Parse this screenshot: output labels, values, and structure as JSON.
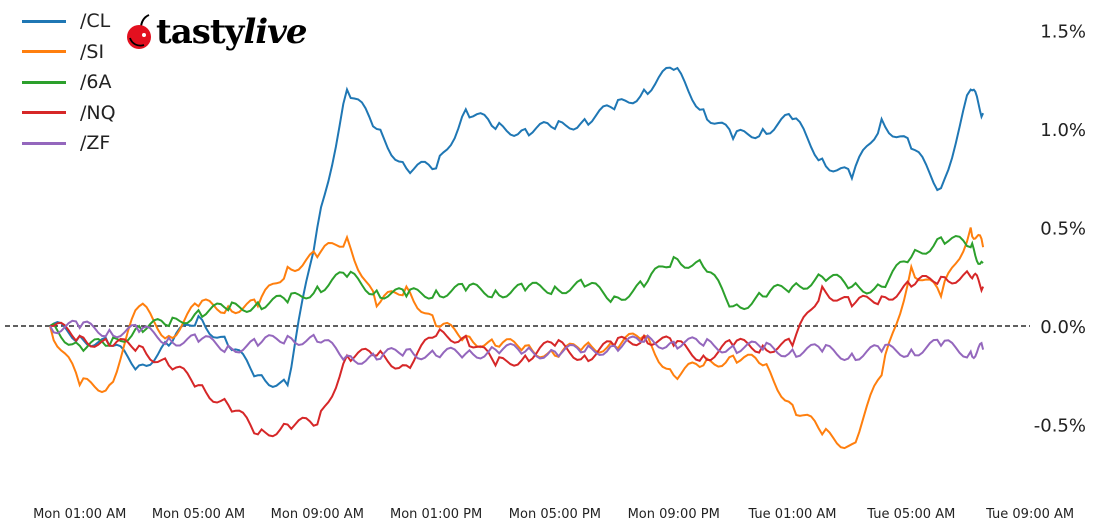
{
  "brand": {
    "logo_text": "tastylive",
    "logo_part1": "tasty",
    "logo_part2": "live",
    "cherry_color": "#e3101f"
  },
  "chart_data": {
    "type": "line",
    "title": "",
    "xlabel": "",
    "ylabel": "",
    "ylim": [
      -0.9,
      1.6
    ],
    "y_unit": "%",
    "yticks": [
      -0.5,
      0.0,
      0.5,
      1.0,
      1.5
    ],
    "ytick_labels": [
      "-0.5%",
      "0.0%",
      "0.5%",
      "1.0%",
      "1.5%"
    ],
    "y_axis_side": "right",
    "xticks": [
      "Mon 01:00",
      "Mon 05:00",
      "Mon 09:00",
      "Mon 13:00",
      "Mon 17:00",
      "Mon 21:00",
      "Tue 01:00",
      "Tue 05:00",
      "Tue 09:00"
    ],
    "xtick_labels": [
      "Mon 01:00 AM",
      "Mon 05:00 AM",
      "Mon 09:00 AM",
      "Mon 01:00 PM",
      "Mon 05:00 PM",
      "Mon 09:00 PM",
      "Tue 01:00 AM",
      "Tue 05:00 AM",
      "Tue 09:00 AM"
    ],
    "xlim": [
      "Mon 00:00",
      "Tue 09:15"
    ],
    "zero_line": "dashed",
    "grid": false,
    "legend": "top-left",
    "x": [
      "Mon 00:00",
      "Mon 01:00",
      "Mon 02:00",
      "Mon 03:00",
      "Mon 04:00",
      "Mon 05:00",
      "Mon 06:00",
      "Mon 07:00",
      "Mon 08:00",
      "Mon 09:00",
      "Mon 10:00",
      "Mon 11:00",
      "Mon 12:00",
      "Mon 13:00",
      "Mon 14:00",
      "Mon 15:00",
      "Mon 16:00",
      "Mon 17:00",
      "Mon 18:00",
      "Mon 19:00",
      "Mon 20:00",
      "Mon 21:00",
      "Mon 22:00",
      "Mon 23:00",
      "Tue 00:00",
      "Tue 01:00",
      "Tue 02:00",
      "Tue 03:00",
      "Tue 04:00",
      "Tue 05:00",
      "Tue 06:00",
      "Tue 07:00",
      "Tue 07:25"
    ],
    "series": [
      {
        "name": "/CL",
        "color": "#1f77b4",
        "values": [
          0.0,
          -0.05,
          -0.1,
          -0.2,
          -0.1,
          0.05,
          -0.1,
          -0.25,
          -0.3,
          0.5,
          1.2,
          1.0,
          0.8,
          0.8,
          1.1,
          1.0,
          1.0,
          1.0,
          1.05,
          1.1,
          1.2,
          1.3,
          1.1,
          0.95,
          1.0,
          1.05,
          0.85,
          0.75,
          1.05,
          0.9,
          0.7,
          1.2,
          1.08
        ]
      },
      {
        "name": "/SI",
        "color": "#ff7f0e",
        "values": [
          0.0,
          -0.3,
          -0.3,
          0.1,
          -0.05,
          0.1,
          0.1,
          0.1,
          0.3,
          0.35,
          0.45,
          0.1,
          0.2,
          0.0,
          -0.05,
          -0.1,
          -0.1,
          -0.15,
          -0.1,
          -0.1,
          -0.05,
          -0.25,
          -0.2,
          -0.15,
          -0.2,
          -0.4,
          -0.55,
          -0.6,
          -0.25,
          0.3,
          0.15,
          0.5,
          0.4
        ]
      },
      {
        "name": "/6A",
        "color": "#2ca02c",
        "values": [
          0.0,
          -0.1,
          -0.1,
          0.0,
          0.0,
          0.08,
          0.08,
          0.12,
          0.12,
          0.2,
          0.25,
          0.18,
          0.15,
          0.18,
          0.18,
          0.18,
          0.18,
          0.2,
          0.2,
          0.15,
          0.2,
          0.35,
          0.3,
          0.1,
          0.15,
          0.2,
          0.25,
          0.2,
          0.2,
          0.35,
          0.45,
          0.4,
          0.32
        ]
      },
      {
        "name": "/NQ",
        "color": "#d62728",
        "values": [
          0.0,
          -0.05,
          -0.1,
          -0.1,
          -0.2,
          -0.3,
          -0.4,
          -0.55,
          -0.5,
          -0.5,
          -0.15,
          -0.15,
          -0.2,
          -0.05,
          -0.05,
          -0.2,
          -0.15,
          -0.1,
          -0.15,
          -0.1,
          -0.05,
          -0.1,
          -0.15,
          -0.1,
          -0.1,
          -0.1,
          0.2,
          0.1,
          0.15,
          0.2,
          0.25,
          0.25,
          0.2
        ]
      },
      {
        "name": "/ZF",
        "color": "#9467bd",
        "values": [
          0.0,
          -0.01,
          -0.02,
          -0.03,
          -0.06,
          -0.08,
          -0.1,
          -0.1,
          -0.05,
          -0.08,
          -0.15,
          -0.17,
          -0.12,
          -0.15,
          -0.14,
          -0.12,
          -0.13,
          -0.13,
          -0.13,
          -0.1,
          -0.08,
          -0.08,
          -0.1,
          -0.1,
          -0.12,
          -0.12,
          -0.13,
          -0.14,
          -0.13,
          -0.12,
          -0.1,
          -0.13,
          -0.12
        ]
      }
    ]
  }
}
